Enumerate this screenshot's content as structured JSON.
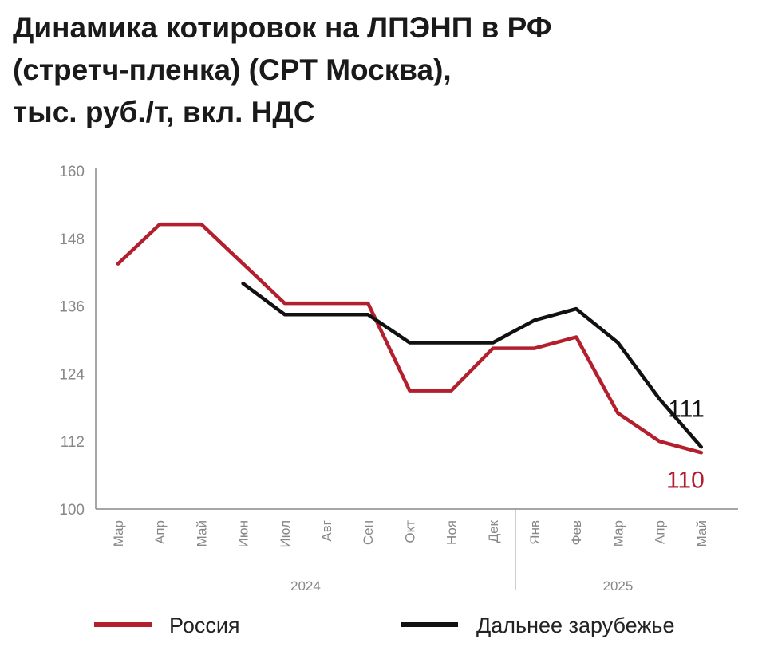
{
  "title_lines": [
    "Динамика котировок на ЛПЭНП в РФ",
    "(стретч-пленка) (CPT Москва),",
    "тыс. руб./т, вкл. НДС"
  ],
  "colors": {
    "russia": "#b41f2e",
    "abroad": "#111111",
    "axis": "#888888",
    "text": "#1a1a1a"
  },
  "chart_data": {
    "type": "line",
    "title": "Динамика котировок на ЛПЭНП в РФ (стретч-пленка) (CPT Москва), тыс. руб./т, вкл. НДС",
    "categories": [
      "Мар",
      "Апр",
      "Май",
      "Июн",
      "Июл",
      "Авг",
      "Сен",
      "Окт",
      "Ноя",
      "Дек",
      "Янв",
      "Фев",
      "Мар",
      "Апр",
      "Май"
    ],
    "year_groups": [
      {
        "label": "2024",
        "start": 0,
        "end": 9
      },
      {
        "label": "2025",
        "start": 10,
        "end": 14
      }
    ],
    "y_ticks": [
      100,
      112,
      124,
      136,
      148,
      160
    ],
    "ylim": [
      100,
      160
    ],
    "grid": false,
    "legend_position": "bottom",
    "series": [
      {
        "name": "Россия",
        "color": "#b41f2e",
        "values": [
          143.5,
          150.5,
          150.5,
          143.5,
          136.5,
          136.5,
          136.5,
          121,
          121,
          128.5,
          128.5,
          130.5,
          117,
          112,
          110
        ],
        "end_label": "110"
      },
      {
        "name": "Дальнее зарубежье",
        "color": "#111111",
        "values": [
          null,
          null,
          null,
          140,
          134.5,
          134.5,
          134.5,
          129.5,
          129.5,
          129.5,
          133.5,
          135.5,
          129.5,
          119.5,
          111
        ],
        "end_label": "111"
      }
    ]
  }
}
